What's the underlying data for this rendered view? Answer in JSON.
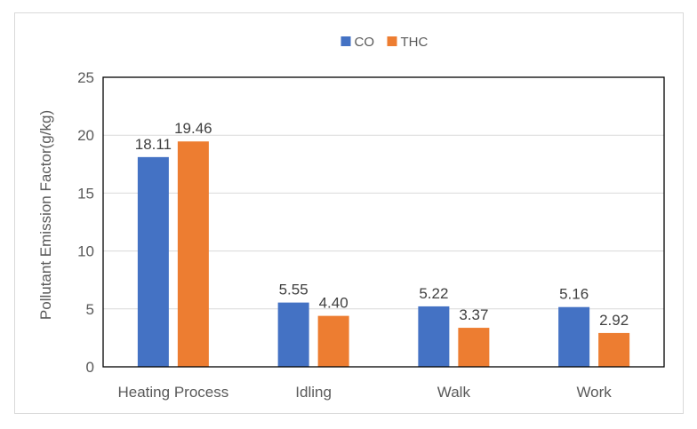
{
  "chart_data": {
    "type": "bar",
    "title": "",
    "xlabel": "",
    "ylabel": "Pollutant Emission Factor(g/kg)",
    "categories": [
      "Heating Process",
      "Idling",
      "Walk",
      "Work"
    ],
    "series": [
      {
        "name": "CO",
        "values": [
          18.11,
          5.55,
          5.22,
          5.16
        ],
        "labels": [
          "18.11",
          "5.55",
          "5.22",
          "5.16"
        ],
        "color": "#4472c4"
      },
      {
        "name": "THC",
        "values": [
          19.46,
          4.4,
          3.37,
          2.92
        ],
        "labels": [
          "19.46",
          "4.40",
          "3.37",
          "2.92"
        ],
        "color": "#ed7d31"
      }
    ],
    "ylim": [
      0,
      25
    ],
    "yticks": [
      "0",
      "5",
      "10",
      "15",
      "20",
      "25"
    ],
    "grid": true,
    "legend": "top-center"
  }
}
